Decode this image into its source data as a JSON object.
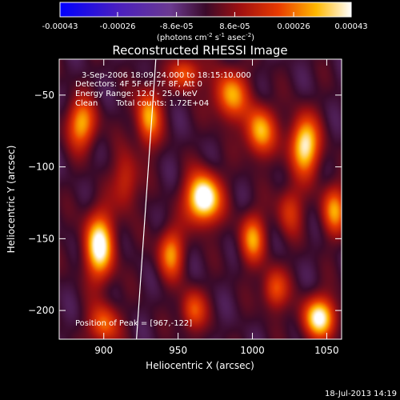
{
  "chart_data": {
    "type": "heatmap",
    "title": "Reconstructed RHESSI Image",
    "xlabel": "Heliocentric X (arcsec)",
    "ylabel": "Heliocentric Y (arcsec)",
    "xlim": [
      870,
      1060
    ],
    "ylim": [
      -220,
      -25
    ],
    "x_ticks": [
      900,
      950,
      1000,
      1050
    ],
    "y_ticks": [
      -50,
      -100,
      -150,
      -200
    ],
    "colorbar": {
      "range": [
        -0.00043,
        0.00043
      ],
      "ticks": [
        {
          "value": -0.00043,
          "label": "-0.00043"
        },
        {
          "value": -0.00026,
          "label": "-0.00026"
        },
        {
          "value": -8.6e-05,
          "label": "-8.6e-05"
        },
        {
          "value": 8.6e-05,
          "label": "8.6e-05"
        },
        {
          "value": 0.00026,
          "label": "0.00026"
        },
        {
          "value": 0.00043,
          "label": "0.00043"
        }
      ],
      "units_text": "(photons cm",
      "units_exp1": "-2",
      "units_mid": " s",
      "units_exp2": "-1",
      "units_tail": " asec",
      "units_exp3": "-2",
      "units_end": ")"
    },
    "annotations": {
      "time": "3-Sep-2006 18:09:24.000 to 18:15:10.000",
      "detectors": "Detectors: 4F 5F 6F 7F 8F, Att 0",
      "energy": "Energy Range: 12.0 - 25.0 keV",
      "clean": "Clean",
      "counts": "Total counts: 1.72E+04",
      "peak": "Position of Peak = [967,-122]"
    },
    "peak": {
      "x": 967,
      "y": -122
    },
    "limb_curve": [
      [
        935,
        -25
      ],
      [
        930,
        -100
      ],
      [
        922,
        -220
      ]
    ],
    "sources": [
      {
        "x": 967,
        "y": -122,
        "amp": 1.0,
        "sx": 8,
        "sy": 12
      },
      {
        "x": 897,
        "y": -155,
        "amp": 0.85,
        "sx": 7,
        "sy": 16
      },
      {
        "x": 1035,
        "y": -85,
        "amp": 0.8,
        "sx": 7,
        "sy": 14
      },
      {
        "x": 1045,
        "y": -205,
        "amp": 0.8,
        "sx": 8,
        "sy": 10
      },
      {
        "x": 985,
        "y": -50,
        "amp": 0.6,
        "sx": 8,
        "sy": 12
      },
      {
        "x": 1005,
        "y": -75,
        "amp": 0.65,
        "sx": 7,
        "sy": 12
      },
      {
        "x": 930,
        "y": -65,
        "amp": 0.6,
        "sx": 6,
        "sy": 14
      },
      {
        "x": 945,
        "y": -160,
        "amp": 0.55,
        "sx": 6,
        "sy": 12
      },
      {
        "x": 1000,
        "y": -150,
        "amp": 0.55,
        "sx": 6,
        "sy": 12
      },
      {
        "x": 885,
        "y": -70,
        "amp": 0.6,
        "sx": 7,
        "sy": 12
      },
      {
        "x": 900,
        "y": -210,
        "amp": 0.5,
        "sx": 7,
        "sy": 10
      },
      {
        "x": 1055,
        "y": -130,
        "amp": 0.55,
        "sx": 6,
        "sy": 12
      },
      {
        "x": 960,
        "y": -200,
        "amp": 0.45,
        "sx": 6,
        "sy": 10
      },
      {
        "x": 1015,
        "y": -185,
        "amp": 0.45,
        "sx": 6,
        "sy": 10
      },
      {
        "x": 955,
        "y": -35,
        "amp": 0.5,
        "sx": 7,
        "sy": 8
      },
      {
        "x": 915,
        "y": -110,
        "amp": 0.35,
        "sx": 6,
        "sy": 14
      },
      {
        "x": 1025,
        "y": -130,
        "amp": 0.35,
        "sx": 6,
        "sy": 12
      }
    ],
    "background_level": 0.28
  },
  "footer": {
    "timestamp": "18-Jul-2013 14:19"
  }
}
